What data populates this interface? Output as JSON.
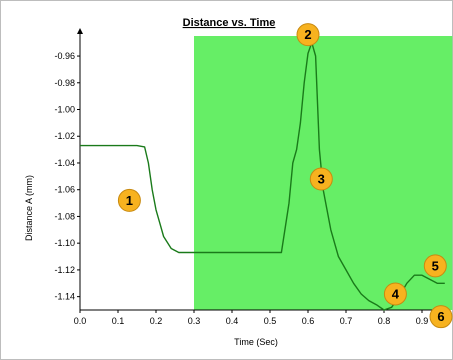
{
  "chart_data": {
    "type": "line",
    "title": "Distance vs. Time",
    "xlabel": "Time (Sec)",
    "ylabel": "Distance A (mm)",
    "xlim": [
      0.0,
      1.0
    ],
    "ylim": [
      -1.15,
      -0.945
    ],
    "x_ticks": [
      0.0,
      0.1,
      0.2,
      0.3,
      0.4,
      0.5,
      0.6,
      0.7,
      0.8,
      0.9
    ],
    "x_tick_labels": [
      "0.0",
      "0.1",
      "0.2",
      "0.3",
      "0.4",
      "0.5",
      "0.6",
      "0.7",
      "0.8",
      "0.9"
    ],
    "y_ticks": [
      -0.96,
      -0.98,
      -1.0,
      -1.02,
      -1.04,
      -1.06,
      -1.08,
      -1.1,
      -1.12,
      -1.14
    ],
    "y_tick_labels": [
      "-0.96",
      "-0.98",
      "-1.00",
      "-1.02",
      "-1.04",
      "-1.06",
      "-1.08",
      "-1.10",
      "-1.12",
      "-1.14"
    ],
    "grid": false,
    "highlight_region": {
      "x_start": 0.3,
      "x_end": 0.98,
      "color": "#66ee66"
    },
    "series": [
      {
        "color": "#1a7a1a",
        "x": [
          0.0,
          0.05,
          0.1,
          0.15,
          0.17,
          0.18,
          0.19,
          0.2,
          0.21,
          0.22,
          0.24,
          0.26,
          0.3,
          0.35,
          0.4,
          0.45,
          0.5,
          0.53,
          0.55,
          0.56,
          0.57,
          0.58,
          0.59,
          0.6,
          0.61,
          0.62,
          0.63,
          0.64,
          0.66,
          0.68,
          0.7,
          0.72,
          0.74,
          0.76,
          0.78,
          0.8,
          0.82,
          0.84,
          0.86,
          0.88,
          0.9,
          0.92,
          0.94,
          0.96
        ],
        "y": [
          -1.027,
          -1.027,
          -1.027,
          -1.027,
          -1.028,
          -1.04,
          -1.06,
          -1.075,
          -1.085,
          -1.095,
          -1.104,
          -1.107,
          -1.107,
          -1.107,
          -1.107,
          -1.107,
          -1.107,
          -1.107,
          -1.07,
          -1.04,
          -1.03,
          -1.01,
          -0.98,
          -0.958,
          -0.95,
          -0.96,
          -1.03,
          -1.06,
          -1.09,
          -1.11,
          -1.12,
          -1.13,
          -1.138,
          -1.143,
          -1.146,
          -1.15,
          -1.148,
          -1.14,
          -1.13,
          -1.124,
          -1.124,
          -1.127,
          -1.13,
          -1.13
        ]
      }
    ],
    "callouts": [
      {
        "label": "1",
        "x": 0.13,
        "y": -1.068
      },
      {
        "label": "2",
        "x": 0.6,
        "y": -0.944
      },
      {
        "label": "3",
        "x": 0.635,
        "y": -1.052
      },
      {
        "label": "4",
        "x": 0.83,
        "y": -1.138
      },
      {
        "label": "5",
        "x": 0.935,
        "y": -1.117
      },
      {
        "label": "6",
        "x": 1.02,
        "y": -1.155
      }
    ],
    "callout_color": "#f7b21f"
  }
}
